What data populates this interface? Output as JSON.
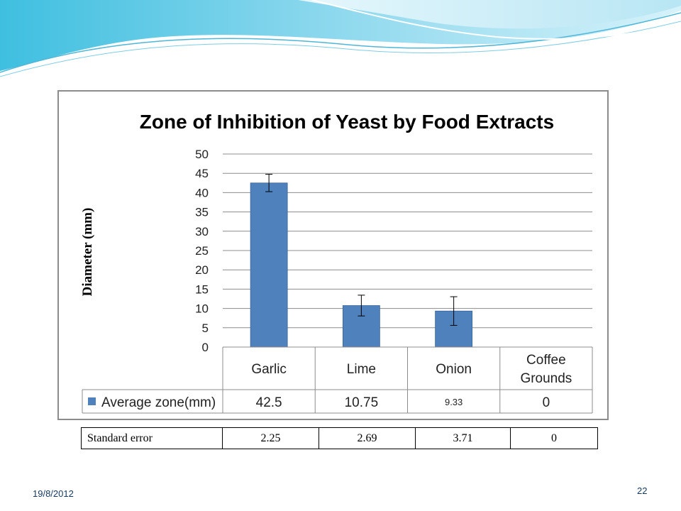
{
  "slide": {
    "date": "19/8/2012",
    "number": "22"
  },
  "chart_data": {
    "type": "bar",
    "title": "Zone of Inhibition of Yeast by Food Extracts",
    "ylabel": "Diameter (mm)",
    "xlabel": "",
    "ylim": [
      0,
      50
    ],
    "yticks": [
      0,
      5,
      10,
      15,
      20,
      25,
      30,
      35,
      40,
      45,
      50
    ],
    "grid": true,
    "categories": [
      "Garlic",
      "Lime",
      "Onion",
      "Coffee\nGrounds"
    ],
    "category_lines": [
      [
        "Garlic"
      ],
      [
        "Lime"
      ],
      [
        "Onion"
      ],
      [
        "Coffee",
        "Grounds"
      ]
    ],
    "series": [
      {
        "name": "Average zone(mm)",
        "values": [
          42.5,
          10.75,
          9.33,
          0
        ],
        "value_labels": [
          "42.5",
          "10.75",
          "9.33",
          "0"
        ],
        "error": [
          2.25,
          2.69,
          3.71,
          0
        ],
        "color": "#4f81bd"
      }
    ],
    "data_table": true
  },
  "standard_error_table": {
    "label": "Standard error",
    "values": [
      "2.25",
      "2.69",
      "3.71",
      "0"
    ]
  },
  "colors": {
    "bar": "#4f81bd",
    "bar_edge": "#3a6598",
    "wave_light": "#bfeaf5",
    "wave_mid": "#5bc6e4",
    "text_accent": "#17375e"
  }
}
